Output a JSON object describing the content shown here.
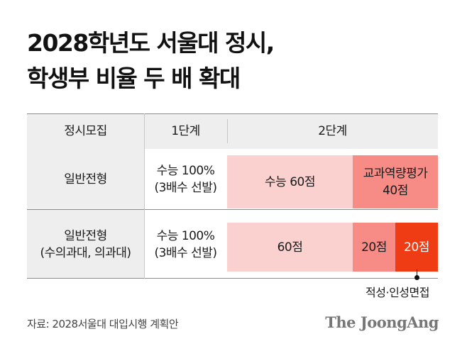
{
  "title": {
    "line1": "2028학년도 서울대 정시,",
    "line2": "학생부 비율 두 배 확대"
  },
  "table": {
    "header": {
      "col0": "정시모집",
      "stage1": "1단계",
      "stage2": "2단계"
    },
    "rows": [
      {
        "category": "일반전형",
        "stage1_line1": "수능 100%",
        "stage1_line2": "(3배수 선발)",
        "stage2_a": "수능 60점",
        "stage2_b_line1": "교과역량평가",
        "stage2_b_line2": "40점"
      },
      {
        "category_line1": "일반전형",
        "category_line2": "(수의과대, 의과대)",
        "stage1_line1": "수능 100%",
        "stage1_line2": "(3배수 선발)",
        "stage2_a": "60점",
        "stage2_b": "20점",
        "stage2_c": "20점"
      }
    ]
  },
  "annotation": "적성·인성면접",
  "source": "자료: 2028서울대 대입시행 계획안",
  "logo": "The JoongAng",
  "colors": {
    "header_bg": "#eeeeee",
    "light_pink": "#fbd1d0",
    "mid_pink": "#f78b86",
    "accent_red": "#f03c14"
  }
}
